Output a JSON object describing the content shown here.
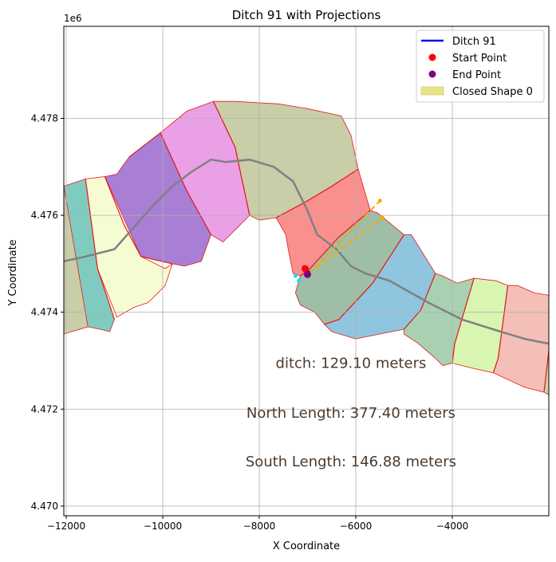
{
  "chart_data": {
    "type": "line",
    "title": "Ditch 91 with Projections",
    "xlabel": "X Coordinate",
    "ylabel": "Y Coordinate",
    "offset_label": "1e6",
    "xlim": [
      -12050,
      -2000
    ],
    "ylim": [
      4469.8,
      4479.9
    ],
    "y_offset": 1000000,
    "x_ticks": [
      -12000,
      -10000,
      -8000,
      -6000,
      -4000
    ],
    "x_tick_labels": [
      "−12000",
      "−10000",
      "−8000",
      "−6000",
      "−4000"
    ],
    "y_ticks": [
      4470,
      4472,
      4474,
      4476,
      4478
    ],
    "y_tick_labels": [
      "4.470",
      "4.472",
      "4.474",
      "4.476",
      "4.478"
    ],
    "grid": true,
    "legend_position": "top-right",
    "legend": [
      {
        "label": "Ditch 91",
        "kind": "line",
        "color": "#0000ee"
      },
      {
        "label": "Start Point",
        "kind": "dot",
        "color": "#ff0000"
      },
      {
        "label": "End Point",
        "kind": "dot",
        "color": "#800080"
      },
      {
        "label": "Closed Shape 0",
        "kind": "patch",
        "color": "#e5e48a"
      }
    ],
    "polygons": [
      {
        "color": "#c9cda8",
        "points": [
          [
            -12050,
            4476.5
          ],
          [
            -11800,
            4476.6
          ],
          [
            -11550,
            4473.7
          ],
          [
            -12050,
            4473.55
          ]
        ]
      },
      {
        "color": "#80cbc0",
        "points": [
          [
            -12050,
            4476.6
          ],
          [
            -11600,
            4476.75
          ],
          [
            -11350,
            4474.9
          ],
          [
            -11000,
            4473.85
          ],
          [
            -11100,
            4473.6
          ],
          [
            -11300,
            4473.65
          ],
          [
            -11550,
            4473.7
          ]
        ]
      },
      {
        "color": "#f6fcd2",
        "points": [
          [
            -11600,
            4476.75
          ],
          [
            -11200,
            4476.8
          ],
          [
            -10800,
            4475.8
          ],
          [
            -10450,
            4475.15
          ],
          [
            -9950,
            4474.9
          ],
          [
            -9800,
            4475.0
          ],
          [
            -9950,
            4474.55
          ],
          [
            -10300,
            4474.2
          ],
          [
            -10600,
            4474.1
          ],
          [
            -10950,
            4473.9
          ],
          [
            -11350,
            4474.9
          ]
        ]
      },
      {
        "color": "#a87fd4",
        "points": [
          [
            -11200,
            4476.8
          ],
          [
            -10950,
            4476.85
          ],
          [
            -10700,
            4477.2
          ],
          [
            -10050,
            4477.7
          ],
          [
            -9500,
            4476.5
          ],
          [
            -9000,
            4475.6
          ],
          [
            -9200,
            4475.05
          ],
          [
            -9550,
            4474.95
          ],
          [
            -9800,
            4475.0
          ],
          [
            -10450,
            4475.15
          ]
        ]
      },
      {
        "color": "#eaa0e6",
        "points": [
          [
            -10050,
            4477.7
          ],
          [
            -9500,
            4478.15
          ],
          [
            -8950,
            4478.35
          ],
          [
            -8500,
            4477.4
          ],
          [
            -8200,
            4476.0
          ],
          [
            -8450,
            4475.75
          ],
          [
            -8750,
            4475.45
          ],
          [
            -9000,
            4475.6
          ],
          [
            -9500,
            4476.5
          ]
        ]
      },
      {
        "color": "#c9cda8",
        "points": [
          [
            -8950,
            4478.35
          ],
          [
            -8500,
            4478.35
          ],
          [
            -7600,
            4478.3
          ],
          [
            -7000,
            4478.2
          ],
          [
            -6300,
            4478.05
          ],
          [
            -6100,
            4477.65
          ],
          [
            -5950,
            4476.95
          ],
          [
            -6500,
            4476.6
          ],
          [
            -7000,
            4476.3
          ],
          [
            -7650,
            4475.95
          ],
          [
            -8000,
            4475.9
          ],
          [
            -8200,
            4476.0
          ],
          [
            -8500,
            4477.4
          ]
        ]
      },
      {
        "color": "#f9908e",
        "points": [
          [
            -7650,
            4475.95
          ],
          [
            -7000,
            4476.3
          ],
          [
            -6500,
            4476.6
          ],
          [
            -5950,
            4476.95
          ],
          [
            -5700,
            4476.1
          ],
          [
            -6350,
            4475.55
          ],
          [
            -6950,
            4474.9
          ],
          [
            -7150,
            4474.75
          ],
          [
            -7300,
            4474.8
          ],
          [
            -7400,
            4475.3
          ],
          [
            -7450,
            4475.6
          ]
        ]
      },
      {
        "color": "#9fbea6",
        "points": [
          [
            -7150,
            4474.75
          ],
          [
            -6950,
            4474.9
          ],
          [
            -6350,
            4475.55
          ],
          [
            -5700,
            4476.1
          ],
          [
            -5550,
            4476.05
          ],
          [
            -5000,
            4475.6
          ],
          [
            -5650,
            4474.6
          ],
          [
            -6350,
            4473.85
          ],
          [
            -6650,
            4473.75
          ],
          [
            -6850,
            4474.0
          ],
          [
            -7150,
            4474.15
          ],
          [
            -7250,
            4474.4
          ]
        ]
      },
      {
        "color": "#90c5e0",
        "points": [
          [
            -6650,
            4473.75
          ],
          [
            -6350,
            4473.85
          ],
          [
            -5650,
            4474.6
          ],
          [
            -5000,
            4475.6
          ],
          [
            -4850,
            4475.6
          ],
          [
            -4350,
            4474.8
          ],
          [
            -4650,
            4474.05
          ],
          [
            -5000,
            4473.65
          ],
          [
            -5500,
            4473.55
          ],
          [
            -6000,
            4473.45
          ],
          [
            -6500,
            4473.6
          ]
        ]
      },
      {
        "color": "#a8d1b2",
        "points": [
          [
            -5000,
            4473.65
          ],
          [
            -4650,
            4474.05
          ],
          [
            -4350,
            4474.8
          ],
          [
            -4200,
            4474.75
          ],
          [
            -3900,
            4474.6
          ],
          [
            -3550,
            4474.7
          ],
          [
            -3950,
            4473.35
          ],
          [
            -4000,
            4472.95
          ],
          [
            -4200,
            4472.9
          ],
          [
            -4350,
            4473.05
          ],
          [
            -4700,
            4473.35
          ],
          [
            -5000,
            4473.55
          ]
        ]
      },
      {
        "color": "#d9f5b2",
        "points": [
          [
            -4000,
            4472.95
          ],
          [
            -3950,
            4473.35
          ],
          [
            -3550,
            4474.7
          ],
          [
            -3100,
            4474.65
          ],
          [
            -2850,
            4474.55
          ],
          [
            -3050,
            4473.05
          ],
          [
            -3150,
            4472.75
          ],
          [
            -3600,
            4472.85
          ]
        ]
      },
      {
        "color": "#f3bfb7",
        "points": [
          [
            -3150,
            4472.75
          ],
          [
            -3050,
            4473.05
          ],
          [
            -2850,
            4474.55
          ],
          [
            -2650,
            4474.55
          ],
          [
            -2300,
            4474.4
          ],
          [
            -2000,
            4474.35
          ],
          [
            -2000,
            4473.2
          ],
          [
            -2100,
            4472.35
          ],
          [
            -2500,
            4472.45
          ]
        ]
      },
      {
        "color": "#c3d99f",
        "points": [
          [
            -2100,
            4472.35
          ],
          [
            -2000,
            4473.2
          ],
          [
            -2000,
            4472.3
          ]
        ]
      }
    ],
    "divider_lines": [
      [
        [
          -11600,
          4476.75
        ],
        [
          -11350,
          4474.9
        ],
        [
          -11000,
          4473.85
        ]
      ],
      [
        [
          -11200,
          4476.8
        ],
        [
          -10800,
          4475.8
        ],
        [
          -10450,
          4475.15
        ],
        [
          -9800,
          4475.0
        ]
      ],
      [
        [
          -10700,
          4477.2
        ],
        [
          -10050,
          4477.7
        ]
      ],
      [
        [
          -10050,
          4477.7
        ],
        [
          -9500,
          4476.5
        ],
        [
          -9000,
          4475.6
        ]
      ],
      [
        [
          -8950,
          4478.35
        ],
        [
          -8500,
          4477.4
        ],
        [
          -8200,
          4476.0
        ]
      ],
      [
        [
          -7650,
          4475.95
        ],
        [
          -7000,
          4476.3
        ],
        [
          -6500,
          4476.6
        ],
        [
          -5950,
          4476.95
        ]
      ],
      [
        [
          -7150,
          4474.75
        ],
        [
          -6950,
          4474.9
        ],
        [
          -6350,
          4475.55
        ],
        [
          -5700,
          4476.1
        ]
      ],
      [
        [
          -5000,
          4475.6
        ],
        [
          -5650,
          4474.6
        ],
        [
          -6350,
          4473.85
        ],
        [
          -6650,
          4473.75
        ]
      ],
      [
        [
          -4350,
          4474.8
        ],
        [
          -4650,
          4474.05
        ],
        [
          -5000,
          4473.65
        ]
      ],
      [
        [
          -3550,
          4474.7
        ],
        [
          -3950,
          4473.35
        ],
        [
          -4000,
          4472.95
        ]
      ],
      [
        [
          -2850,
          4474.55
        ],
        [
          -3050,
          4473.05
        ],
        [
          -3150,
          4472.75
        ]
      ],
      [
        [
          -2000,
          4473.2
        ],
        [
          -2100,
          4472.35
        ]
      ]
    ],
    "centerline": [
      [
        -12050,
        4475.05
      ],
      [
        -11600,
        4475.15
      ],
      [
        -11000,
        4475.3
      ],
      [
        -10600,
        4475.75
      ],
      [
        -10200,
        4476.2
      ],
      [
        -9800,
        4476.6
      ],
      [
        -9400,
        4476.9
      ],
      [
        -9000,
        4477.15
      ],
      [
        -8700,
        4477.1
      ],
      [
        -8200,
        4477.15
      ],
      [
        -7700,
        4477.0
      ],
      [
        -7300,
        4476.7
      ],
      [
        -7000,
        4476.1
      ],
      [
        -6800,
        4475.6
      ],
      [
        -6400,
        4475.3
      ],
      [
        -6100,
        4474.95
      ],
      [
        -5800,
        4474.8
      ],
      [
        -5300,
        4474.65
      ],
      [
        -4500,
        4474.2
      ],
      [
        -3800,
        4473.85
      ],
      [
        -3000,
        4473.6
      ],
      [
        -2500,
        4473.45
      ],
      [
        -2000,
        4473.35
      ]
    ],
    "ditch_line": [
      [
        -7040,
        4474.9
      ],
      [
        -6950,
        4474.82
      ]
    ],
    "start_point": [
      -7050,
      4474.9
    ],
    "end_point": [
      -7000,
      4474.78
    ],
    "north_projection": [
      [
        -6950,
        4474.82
      ],
      [
        -5500,
        4476.3
      ]
    ],
    "south_projection": [
      [
        -6950,
        4474.82
      ],
      [
        -5450,
        4475.95
      ]
    ],
    "cyan_points": [
      [
        -7250,
        4474.75
      ],
      [
        -7180,
        4474.65
      ]
    ],
    "annotations": [
      {
        "text": "ditch: 129.10 meters",
        "x": -6100,
        "y": 4472.85
      },
      {
        "text": "North Length: 377.40 meters",
        "x": -6100,
        "y": 4471.82
      },
      {
        "text": "South Length: 146.88 meters",
        "x": -6100,
        "y": 4470.82
      }
    ]
  }
}
